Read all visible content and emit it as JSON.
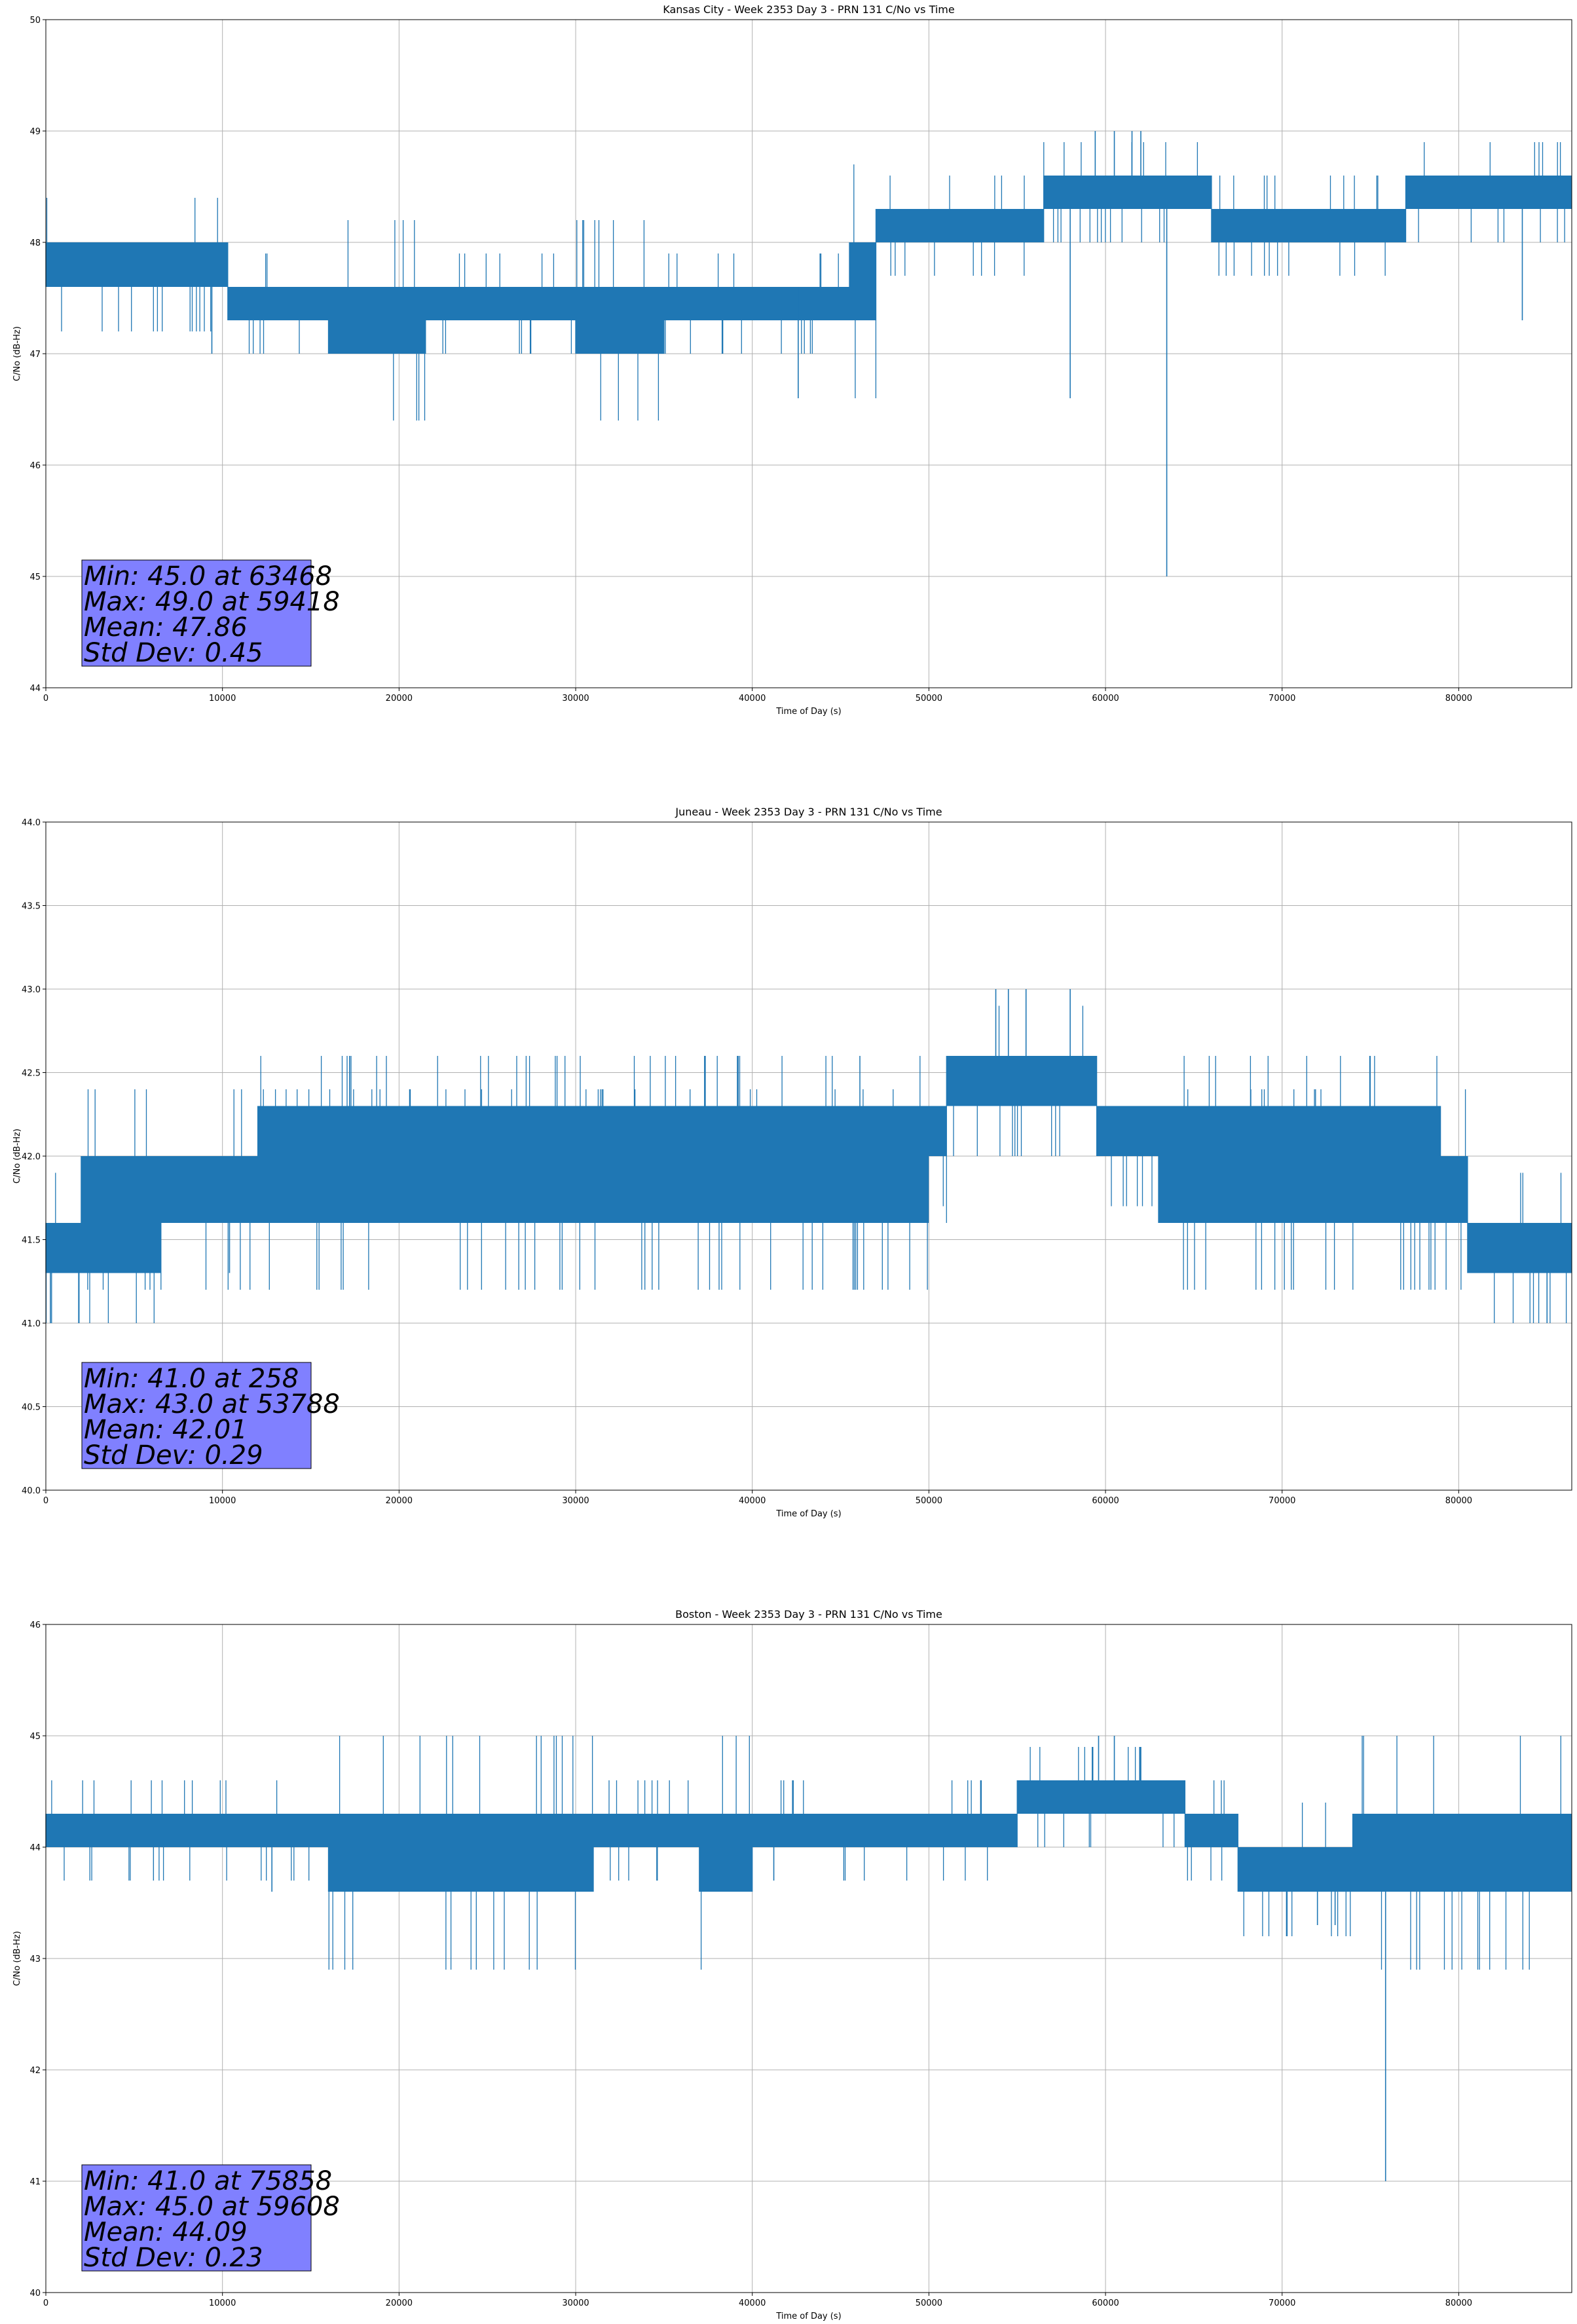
{
  "chart_data": [
    {
      "type": "line",
      "title": "Kansas City - Week 2353 Day 3 - PRN 131 C/No vs Time",
      "xlabel": "Time of Day (s)",
      "ylabel": "C/No (dB-Hz)",
      "xlim": [
        0,
        86400
      ],
      "ylim": [
        44,
        50
      ],
      "xticks": [
        0,
        10000,
        20000,
        30000,
        40000,
        50000,
        60000,
        70000,
        80000
      ],
      "yticks": [
        44,
        45,
        46,
        47,
        48,
        49,
        50
      ],
      "ytick_labels": [
        "44",
        "45",
        "46",
        "47",
        "48",
        "49",
        "50"
      ],
      "grid": true,
      "series_color": "#1f77b4",
      "levels": [
        {
          "x0": 0,
          "x1": 10300,
          "lo": 47.6,
          "hi": 48.0
        },
        {
          "x0": 10300,
          "x1": 16000,
          "lo": 47.3,
          "hi": 47.6
        },
        {
          "x0": 16000,
          "x1": 21500,
          "lo": 47.0,
          "hi": 47.6
        },
        {
          "x0": 21500,
          "x1": 30000,
          "lo": 47.3,
          "hi": 47.6
        },
        {
          "x0": 30000,
          "x1": 35000,
          "lo": 47.0,
          "hi": 47.6
        },
        {
          "x0": 35000,
          "x1": 45500,
          "lo": 47.3,
          "hi": 47.6
        },
        {
          "x0": 45500,
          "x1": 47000,
          "lo": 47.3,
          "hi": 48.0
        },
        {
          "x0": 47000,
          "x1": 56500,
          "lo": 48.0,
          "hi": 48.3
        },
        {
          "x0": 56500,
          "x1": 66000,
          "lo": 48.3,
          "hi": 48.6
        },
        {
          "x0": 66000,
          "x1": 77000,
          "lo": 48.0,
          "hi": 48.3
        },
        {
          "x0": 77000,
          "x1": 86400,
          "lo": 48.3,
          "hi": 48.6
        }
      ],
      "extremes": [
        {
          "x": 63468,
          "lo": 45.0,
          "hi": 48.3
        },
        {
          "x": 58000,
          "lo": 46.6,
          "hi": 48.3
        },
        {
          "x": 42600,
          "lo": 46.6,
          "hi": 47.6
        },
        {
          "x": 59418,
          "lo": 48.6,
          "hi": 49.0
        },
        {
          "x": 60500,
          "lo": 48.6,
          "hi": 49.0
        },
        {
          "x": 61500,
          "lo": 48.6,
          "hi": 49.0
        },
        {
          "x": 62000,
          "lo": 48.6,
          "hi": 49.0
        },
        {
          "x": 9400,
          "lo": 47.0,
          "hi": 47.6
        },
        {
          "x": 83600,
          "lo": 47.3,
          "hi": 48.3
        }
      ],
      "stats": {
        "min": "Min: 45.0 at 63468",
        "max": "Max: 49.0 at 59418",
        "mean": "Mean: 47.86",
        "std": "Std Dev: 0.45"
      }
    },
    {
      "type": "line",
      "title": "Juneau - Week 2353 Day 3 - PRN 131 C/No vs Time",
      "xlabel": "Time of Day (s)",
      "ylabel": "C/No (dB-Hz)",
      "xlim": [
        0,
        86400
      ],
      "ylim": [
        40.0,
        44.0
      ],
      "xticks": [
        0,
        10000,
        20000,
        30000,
        40000,
        50000,
        60000,
        70000,
        80000
      ],
      "yticks": [
        40.0,
        40.5,
        41.0,
        41.5,
        42.0,
        42.5,
        43.0,
        43.5,
        44.0
      ],
      "ytick_labels": [
        "40.0",
        "40.5",
        "41.0",
        "41.5",
        "42.0",
        "42.5",
        "43.0",
        "43.5",
        "44.0"
      ],
      "grid": true,
      "series_color": "#1f77b4",
      "levels": [
        {
          "x0": 0,
          "x1": 6500,
          "lo": 41.3,
          "hi": 41.6
        },
        {
          "x0": 2000,
          "x1": 6500,
          "lo": 41.6,
          "hi": 42.0
        },
        {
          "x0": 6500,
          "x1": 12000,
          "lo": 41.6,
          "hi": 42.0
        },
        {
          "x0": 12000,
          "x1": 51000,
          "lo": 42.0,
          "hi": 42.3
        },
        {
          "x0": 12000,
          "x1": 50000,
          "lo": 41.6,
          "hi": 42.0
        },
        {
          "x0": 51000,
          "x1": 59500,
          "lo": 42.3,
          "hi": 42.6
        },
        {
          "x0": 59500,
          "x1": 79000,
          "lo": 42.0,
          "hi": 42.3
        },
        {
          "x0": 63000,
          "x1": 79000,
          "lo": 41.6,
          "hi": 42.0
        },
        {
          "x0": 79000,
          "x1": 80500,
          "lo": 41.6,
          "hi": 42.0
        },
        {
          "x0": 80500,
          "x1": 86400,
          "lo": 41.3,
          "hi": 41.6
        }
      ],
      "extremes": [
        {
          "x": 258,
          "lo": 41.0,
          "hi": 41.3
        },
        {
          "x": 53788,
          "lo": 42.6,
          "hi": 43.0
        },
        {
          "x": 54500,
          "lo": 42.6,
          "hi": 43.0
        },
        {
          "x": 55500,
          "lo": 42.6,
          "hi": 43.0
        },
        {
          "x": 58000,
          "lo": 42.6,
          "hi": 43.0
        },
        {
          "x": 17200,
          "lo": 42.3,
          "hi": 42.6
        },
        {
          "x": 37300,
          "lo": 42.3,
          "hi": 42.6
        },
        {
          "x": 39200,
          "lo": 42.3,
          "hi": 42.6
        },
        {
          "x": 10400,
          "lo": 41.3,
          "hi": 41.6
        },
        {
          "x": 85000,
          "lo": 41.0,
          "hi": 41.3
        }
      ],
      "stats": {
        "min": "Min: 41.0 at 258",
        "max": "Max: 43.0 at 53788",
        "mean": "Mean: 42.01",
        "std": "Std Dev: 0.29"
      }
    },
    {
      "type": "line",
      "title": "Boston - Week 2353 Day 3 - PRN 131 C/No vs Time",
      "xlabel": "Time of Day (s)",
      "ylabel": "C/No (dB-Hz)",
      "xlim": [
        0,
        86400
      ],
      "ylim": [
        40,
        46
      ],
      "xticks": [
        0,
        10000,
        20000,
        30000,
        40000,
        50000,
        60000,
        70000,
        80000
      ],
      "yticks": [
        40,
        41,
        42,
        43,
        44,
        45,
        46
      ],
      "ytick_labels": [
        "40",
        "41",
        "42",
        "43",
        "44",
        "45",
        "46"
      ],
      "grid": true,
      "series_color": "#1f77b4",
      "levels": [
        {
          "x0": 0,
          "x1": 16000,
          "lo": 44.0,
          "hi": 44.3
        },
        {
          "x0": 16000,
          "x1": 31000,
          "lo": 43.6,
          "hi": 44.3
        },
        {
          "x0": 31000,
          "x1": 37000,
          "lo": 44.0,
          "hi": 44.3
        },
        {
          "x0": 37000,
          "x1": 40000,
          "lo": 43.6,
          "hi": 44.3
        },
        {
          "x0": 40000,
          "x1": 55000,
          "lo": 44.0,
          "hi": 44.3
        },
        {
          "x0": 55000,
          "x1": 64500,
          "lo": 44.3,
          "hi": 44.6
        },
        {
          "x0": 64500,
          "x1": 67500,
          "lo": 44.0,
          "hi": 44.3
        },
        {
          "x0": 67500,
          "x1": 74000,
          "lo": 43.6,
          "hi": 44.0
        },
        {
          "x0": 74000,
          "x1": 86400,
          "lo": 43.6,
          "hi": 44.3
        }
      ],
      "extremes": [
        {
          "x": 75858,
          "lo": 41.0,
          "hi": 43.6
        },
        {
          "x": 59608,
          "lo": 44.6,
          "hi": 45.0
        },
        {
          "x": 60500,
          "lo": 44.6,
          "hi": 45.0
        },
        {
          "x": 72000,
          "lo": 43.3,
          "hi": 43.6
        },
        {
          "x": 73000,
          "lo": 43.3,
          "hi": 43.6
        },
        {
          "x": 12800,
          "lo": 43.6,
          "hi": 44.0
        }
      ],
      "stats": {
        "min": "Min: 41.0 at 75858",
        "max": "Max: 45.0 at 59608",
        "mean": "Mean: 44.09",
        "std": "Std Dev: 0.23"
      }
    }
  ]
}
